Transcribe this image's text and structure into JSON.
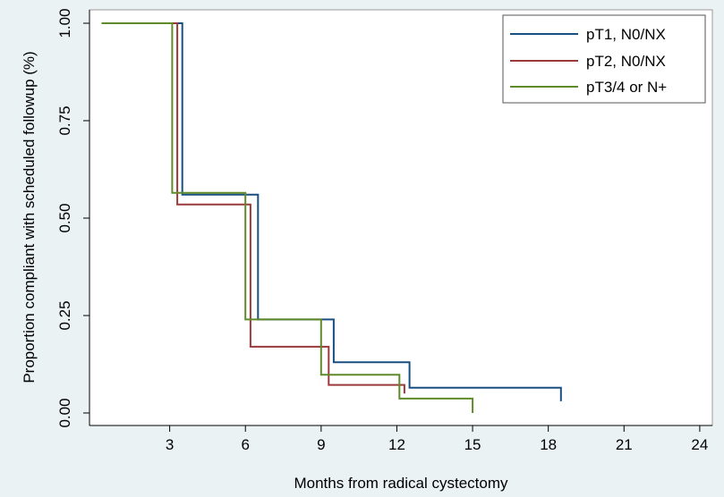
{
  "chart_data": {
    "type": "line",
    "step": true,
    "xlabel": "Months from radical cystectomy",
    "ylabel": "Proportion compliant with scheduled followup (%)",
    "xlim": [
      0,
      24.5
    ],
    "ylim": [
      0,
      1
    ],
    "xticks": [
      3,
      6,
      9,
      12,
      15,
      18,
      21,
      24
    ],
    "xtick_labels": [
      "3",
      "6",
      "9",
      "12",
      "15",
      "18",
      "21",
      "24"
    ],
    "yticks": [
      0,
      0.25,
      0.5,
      0.75,
      1
    ],
    "ytick_labels": [
      "0.00",
      "0.25",
      "0.50",
      "0.75",
      "1.00"
    ],
    "grid": false,
    "legend_position": "top-right",
    "series": [
      {
        "name": "pT1, N0/NX",
        "color": "#1a4f82",
        "points": [
          [
            0.3,
            1.0
          ],
          [
            3.5,
            1.0
          ],
          [
            3.5,
            0.56
          ],
          [
            6.5,
            0.56
          ],
          [
            6.5,
            0.24
          ],
          [
            9.5,
            0.24
          ],
          [
            9.5,
            0.13
          ],
          [
            12.5,
            0.13
          ],
          [
            12.5,
            0.065
          ],
          [
            18.5,
            0.065
          ],
          [
            18.5,
            0.03
          ]
        ]
      },
      {
        "name": "pT2, N0/NX",
        "color": "#9b3a3a",
        "points": [
          [
            0.3,
            1.0
          ],
          [
            3.3,
            1.0
          ],
          [
            3.3,
            0.535
          ],
          [
            6.2,
            0.535
          ],
          [
            6.2,
            0.17
          ],
          [
            9.3,
            0.17
          ],
          [
            9.3,
            0.072
          ],
          [
            12.3,
            0.072
          ],
          [
            12.3,
            0.05
          ]
        ]
      },
      {
        "name": "pT3/4 or N+",
        "color": "#5f8a2a",
        "points": [
          [
            0.3,
            1.0
          ],
          [
            3.1,
            1.0
          ],
          [
            3.1,
            0.565
          ],
          [
            6.0,
            0.565
          ],
          [
            6.0,
            0.24
          ],
          [
            9.0,
            0.24
          ],
          [
            9.0,
            0.098
          ],
          [
            12.1,
            0.098
          ],
          [
            12.1,
            0.037
          ],
          [
            15.0,
            0.037
          ],
          [
            15.0,
            0.0
          ]
        ]
      }
    ]
  }
}
